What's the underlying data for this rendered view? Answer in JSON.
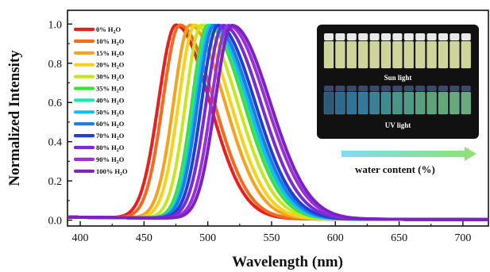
{
  "chart_data": {
    "type": "line",
    "xlabel": "Wavelength (nm)",
    "ylabel": "Normalized Intensity",
    "xlim": [
      390,
      720
    ],
    "ylim": [
      -0.03,
      1.07
    ],
    "x_ticks": [
      400,
      450,
      500,
      550,
      600,
      650,
      700
    ],
    "y_ticks": [
      0.0,
      0.2,
      0.4,
      0.6,
      0.8,
      1.0
    ],
    "x_tick_labels": [
      "400",
      "450",
      "500",
      "550",
      "600",
      "650",
      "700"
    ],
    "y_tick_labels": [
      "0.0",
      "0.2",
      "0.4",
      "0.6",
      "0.8",
      "1.0"
    ],
    "grid": false,
    "legend_position": "top-left",
    "series": [
      {
        "name": "0% H2O",
        "label_base": "0% H",
        "label_sub": "2",
        "label_tail": "O",
        "color": "#ee1c1c",
        "peak": 475,
        "fwhm_left": 32,
        "fwhm_right": 62
      },
      {
        "name": "10% H2O",
        "label_base": "10% H",
        "label_sub": "2",
        "label_tail": "O",
        "color": "#f26a1b",
        "peak": 478,
        "fwhm_left": 31,
        "fwhm_right": 63
      },
      {
        "name": "15% H2O",
        "label_base": "15% H",
        "label_sub": "2",
        "label_tail": "O",
        "color": "#f7a21b",
        "peak": 486,
        "fwhm_left": 30,
        "fwhm_right": 64
      },
      {
        "name": "20% H2O",
        "label_base": "20% H",
        "label_sub": "2",
        "label_tail": "O",
        "color": "#f5d31c",
        "peak": 490,
        "fwhm_left": 30,
        "fwhm_right": 65
      },
      {
        "name": "30% H2O",
        "label_base": "30% H",
        "label_sub": "2",
        "label_tail": "O",
        "color": "#c8e61e",
        "peak": 495,
        "fwhm_left": 29,
        "fwhm_right": 66
      },
      {
        "name": "35% H2O",
        "label_base": "35% H",
        "label_sub": "2",
        "label_tail": "O",
        "color": "#3fe03a",
        "peak": 500,
        "fwhm_left": 29,
        "fwhm_right": 66
      },
      {
        "name": "40% H2O",
        "label_base": "40% H",
        "label_sub": "2",
        "label_tail": "O",
        "color": "#1de6b4",
        "peak": 502,
        "fwhm_left": 29,
        "fwhm_right": 67
      },
      {
        "name": "50% H2O",
        "label_base": "50% H",
        "label_sub": "2",
        "label_tail": "O",
        "color": "#1cb9ec",
        "peak": 503,
        "fwhm_left": 29,
        "fwhm_right": 67
      },
      {
        "name": "60% H2O",
        "label_base": "60% H",
        "label_sub": "2",
        "label_tail": "O",
        "color": "#1d7ce6",
        "peak": 505,
        "fwhm_left": 30,
        "fwhm_right": 68
      },
      {
        "name": "70% H2O",
        "label_base": "70% H",
        "label_sub": "2",
        "label_tail": "O",
        "color": "#1f3fd8",
        "peak": 508,
        "fwhm_left": 30,
        "fwhm_right": 68
      },
      {
        "name": "80% H2O",
        "label_base": "80% H",
        "label_sub": "2",
        "label_tail": "O",
        "color": "#7a2bd6",
        "peak": 512,
        "fwhm_left": 31,
        "fwhm_right": 69
      },
      {
        "name": "90% H2O",
        "label_base": "90% H",
        "label_sub": "2",
        "label_tail": "O",
        "color": "#9b2fd8",
        "peak": 516,
        "fwhm_left": 31,
        "fwhm_right": 70
      },
      {
        "name": "100% H2O",
        "label_base": "100% H",
        "label_sub": "2",
        "label_tail": "O",
        "color": "#7b22c4",
        "peak": 519,
        "fwhm_left": 31,
        "fwhm_right": 70
      }
    ]
  },
  "inset": {
    "sun_label": "Sun light",
    "uv_label": "UV light",
    "vial_count": 13,
    "background": "#111111",
    "sun_vial_color": "#cfd49a",
    "uv_vial_colors": [
      "#2a5a78",
      "#2f6a8a",
      "#2f7396",
      "#34789a",
      "#3a8096",
      "#3f8a8e",
      "#4a9686",
      "#4f9a82",
      "#58a07c",
      "#5ea37a",
      "#63a778",
      "#66a97a",
      "#6aaa7c"
    ]
  },
  "arrow": {
    "label": "water content (%)",
    "color_start": "#7fdcf5",
    "color_end": "#8fe07a"
  }
}
